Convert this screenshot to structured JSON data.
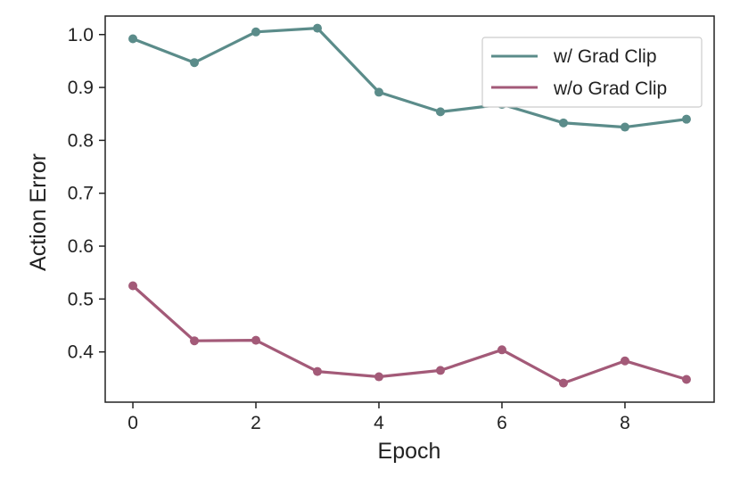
{
  "chart_data": {
    "type": "line",
    "title": "",
    "xlabel": "Epoch",
    "ylabel": "Action Error",
    "xlim": [
      -0.45,
      9.45
    ],
    "ylim": [
      0.305,
      1.035
    ],
    "xticks": [
      0,
      2,
      4,
      6,
      8
    ],
    "xtick_labels": [
      "0",
      "2",
      "4",
      "6",
      "8"
    ],
    "yticks": [
      0.4,
      0.5,
      0.6,
      0.7,
      0.8,
      0.9,
      1.0
    ],
    "ytick_labels": [
      "0.4",
      "0.5",
      "0.6",
      "0.7",
      "0.8",
      "0.9",
      "1.0"
    ],
    "grid": false,
    "legend_position": "top-right",
    "x": [
      0,
      1,
      2,
      3,
      4,
      5,
      6,
      7,
      8,
      9
    ],
    "series": [
      {
        "name": "w/ Grad Clip",
        "color": "#5b8c8a",
        "values": [
          0.992,
          0.947,
          1.005,
          1.012,
          0.891,
          0.854,
          0.868,
          0.833,
          0.825,
          0.84
        ]
      },
      {
        "name": "w/o Grad Clip",
        "color": "#a35a78",
        "values": [
          0.525,
          0.421,
          0.422,
          0.363,
          0.353,
          0.365,
          0.404,
          0.341,
          0.383,
          0.348
        ]
      }
    ]
  }
}
